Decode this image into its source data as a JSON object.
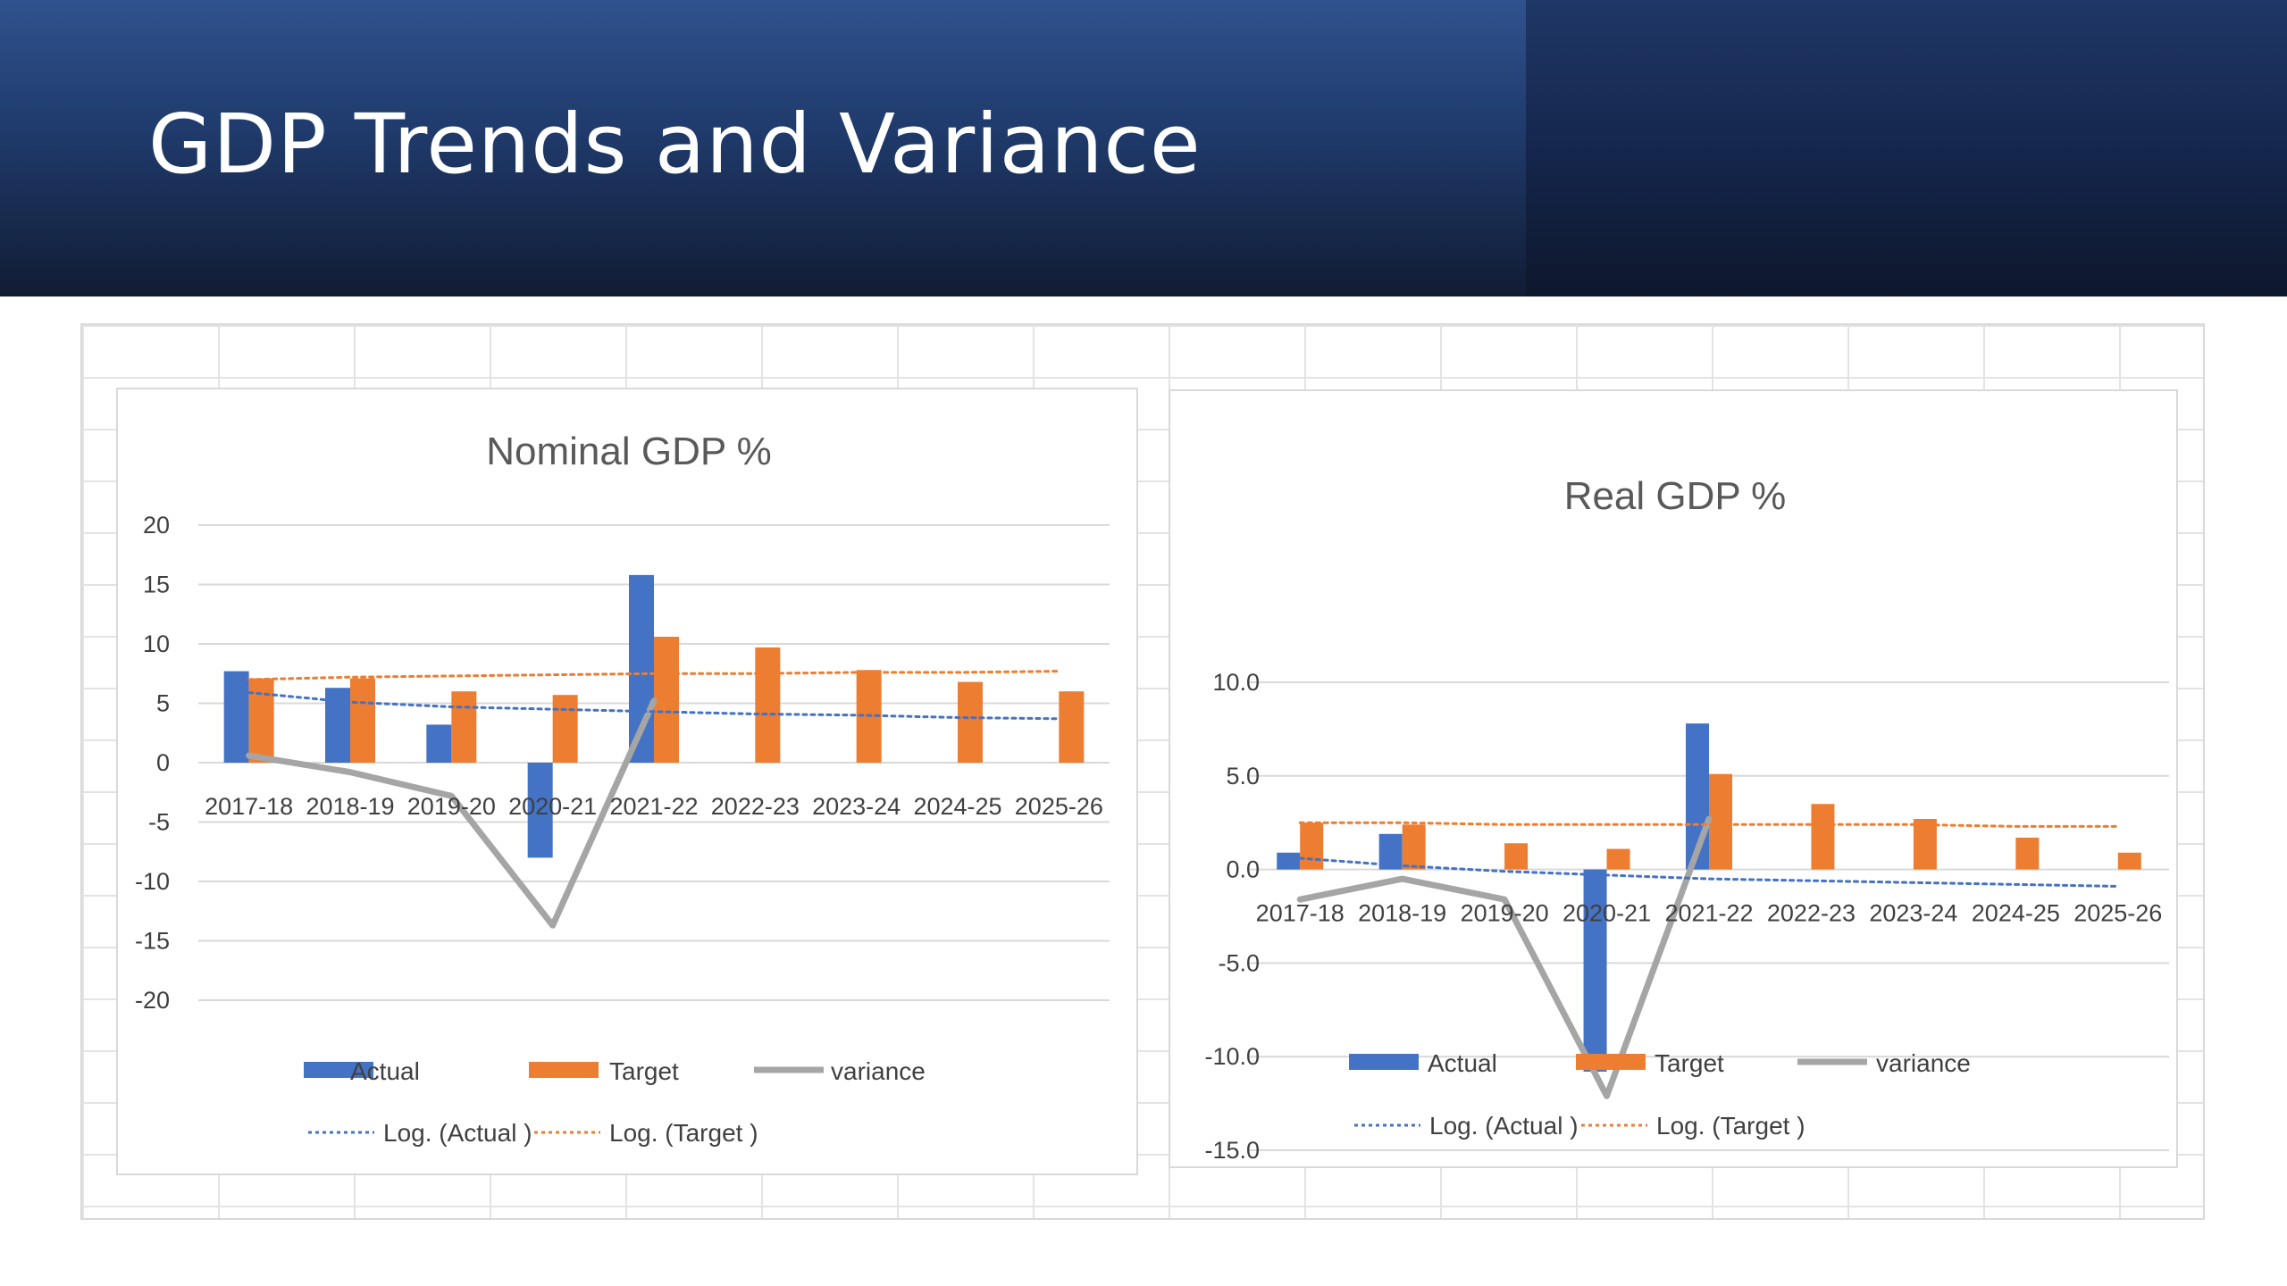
{
  "slide": {
    "title": "GDP Trends and Variance"
  },
  "chart_data": [
    {
      "type": "bar",
      "title": "Nominal GDP %",
      "categories": [
        "2017-18",
        "2018-19",
        "2019-20",
        "2020-21",
        "2021-22",
        "2022-23",
        "2023-24",
        "2024-25",
        "2025-26"
      ],
      "ylim": [
        -20,
        20
      ],
      "yticks": [
        20,
        15,
        10,
        5,
        0,
        -5,
        -10,
        -15,
        -20
      ],
      "ytick_labels": [
        "20",
        "15",
        "10",
        "5",
        "0",
        "-5",
        "-10",
        "-15",
        "-20"
      ],
      "grid": true,
      "legend_position": "bottom",
      "series": [
        {
          "name": "Actual",
          "type": "bar",
          "color": "#4472c4",
          "values": [
            7.7,
            6.3,
            3.2,
            -8.0,
            15.8,
            null,
            null,
            null,
            null
          ]
        },
        {
          "name": "Target",
          "type": "bar",
          "color": "#ed7d31",
          "values": [
            7.1,
            7.1,
            6.0,
            5.7,
            10.6,
            9.7,
            7.8,
            6.8,
            6.0
          ]
        },
        {
          "name": "variance",
          "type": "line",
          "color": "#a5a5a5",
          "values": [
            0.6,
            -0.8,
            -2.8,
            -13.7,
            5.2,
            null,
            null,
            null,
            null
          ]
        },
        {
          "name": "Log. (Actual )",
          "type": "trendline",
          "color": "#4472c4",
          "values": [
            5.9,
            5.1,
            4.7,
            4.5,
            4.3,
            4.1,
            4.0,
            3.8,
            3.7
          ]
        },
        {
          "name": "Log. (Target )",
          "type": "trendline",
          "color": "#ed7d31",
          "values": [
            7.0,
            7.2,
            7.3,
            7.4,
            7.5,
            7.5,
            7.6,
            7.6,
            7.7
          ]
        }
      ],
      "legend": {
        "actual": "Actual",
        "target": "Target",
        "variance": "variance",
        "log_actual": "Log. (Actual )",
        "log_target": "Log. (Target )"
      }
    },
    {
      "type": "bar",
      "title": "Real GDP %",
      "categories": [
        "2017-18",
        "2018-19",
        "2019-20",
        "2020-21",
        "2021-22",
        "2022-23",
        "2023-24",
        "2024-25",
        "2025-26"
      ],
      "ylim": [
        -15,
        10
      ],
      "yticks": [
        10,
        5,
        0,
        -5,
        -10,
        -15
      ],
      "ytick_labels": [
        "10.0",
        "5.0",
        "0.0",
        "-5.0",
        "-10.0",
        "-15.0"
      ],
      "grid": true,
      "legend_position": "bottom",
      "series": [
        {
          "name": "Actual",
          "type": "bar",
          "color": "#4472c4",
          "values": [
            0.9,
            1.9,
            null,
            -10.8,
            7.8,
            null,
            null,
            null,
            null
          ]
        },
        {
          "name": "Target",
          "type": "bar",
          "color": "#ed7d31",
          "values": [
            2.5,
            2.4,
            1.4,
            1.1,
            5.1,
            3.5,
            2.7,
            1.7,
            0.9
          ]
        },
        {
          "name": "variance",
          "type": "line",
          "color": "#a5a5a5",
          "values": [
            -1.6,
            -0.5,
            -1.6,
            -12.1,
            2.7,
            null,
            null,
            null,
            null
          ]
        },
        {
          "name": "Log. (Actual )",
          "type": "trendline",
          "color": "#4472c4",
          "values": [
            0.6,
            0.2,
            -0.1,
            -0.3,
            -0.5,
            -0.6,
            -0.7,
            -0.8,
            -0.9
          ]
        },
        {
          "name": "Log. (Target )",
          "type": "trendline",
          "color": "#ed7d31",
          "values": [
            2.5,
            2.5,
            2.4,
            2.4,
            2.4,
            2.4,
            2.4,
            2.3,
            2.3
          ]
        }
      ],
      "legend": {
        "actual": "Actual",
        "target": "Target",
        "variance": "variance",
        "log_actual": "Log. (Actual )",
        "log_target": "Log. (Target )"
      }
    }
  ]
}
